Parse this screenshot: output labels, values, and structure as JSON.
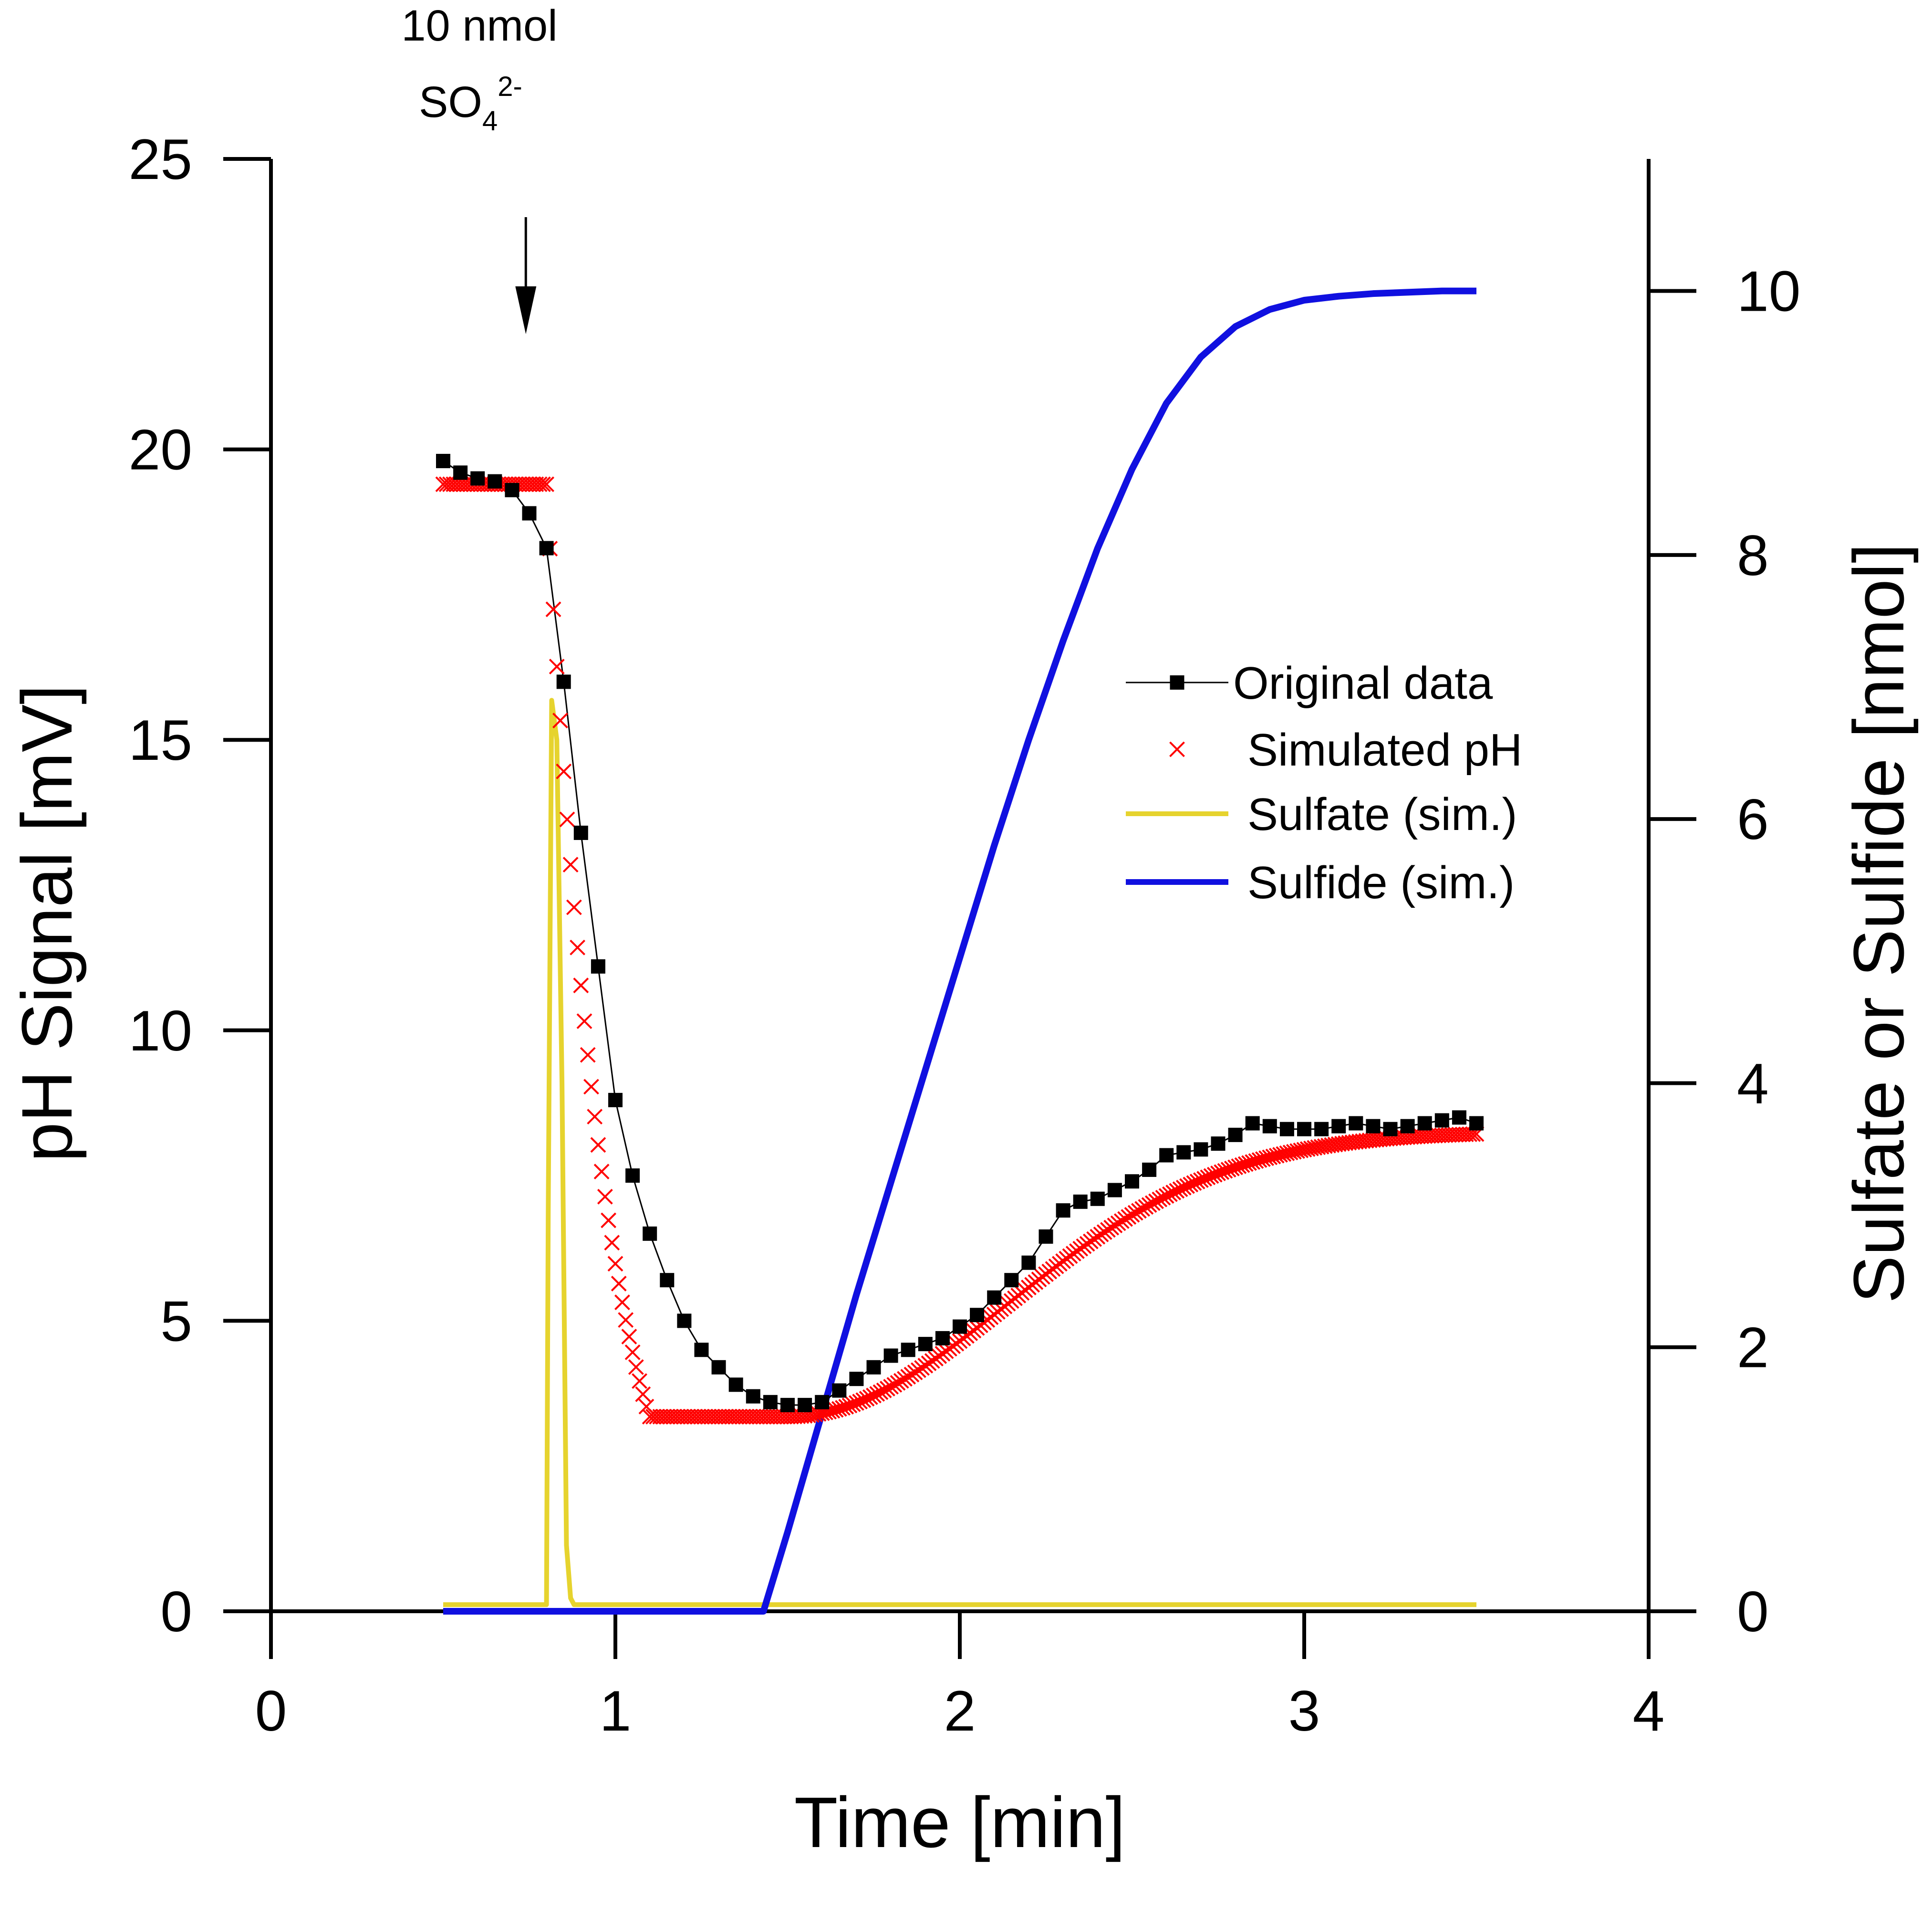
{
  "chart_data": {
    "type": "line",
    "title": "",
    "xlabel": "Time [min]",
    "ylabel": "pH Signal [mV]",
    "ylabel_right": "Sulfate or Sulfide [nmol]",
    "xlim": [
      0,
      4
    ],
    "ylim": [
      0,
      25
    ],
    "ylim_right": [
      0,
      11
    ],
    "x_ticks": [
      "0",
      "1",
      "2",
      "3",
      "4"
    ],
    "y_ticks": [
      "0",
      "5",
      "10",
      "15",
      "20",
      "25"
    ],
    "y_ticks_right": [
      "0",
      "2",
      "4",
      "6",
      "8",
      "10"
    ],
    "grid": false,
    "legend_position": "center-right",
    "annotation": {
      "line1": "10 nmol",
      "line2_main": "SO",
      "line2_sub": "4",
      "line2_sup": "2-",
      "x": 0.74
    },
    "series": [
      {
        "name": "Original data",
        "axis": "left",
        "color": "#000000",
        "marker": "square",
        "x": [
          0.5,
          0.55,
          0.6,
          0.65,
          0.7,
          0.75,
          0.8,
          0.85,
          0.9,
          0.95,
          1.0,
          1.05,
          1.1,
          1.15,
          1.2,
          1.25,
          1.3,
          1.35,
          1.4,
          1.45,
          1.5,
          1.55,
          1.6,
          1.65,
          1.7,
          1.75,
          1.8,
          1.85,
          1.9,
          1.95,
          2.0,
          2.05,
          2.1,
          2.15,
          2.2,
          2.25,
          2.3,
          2.35,
          2.4,
          2.45,
          2.5,
          2.55,
          2.6,
          2.65,
          2.7,
          2.75,
          2.8,
          2.85,
          2.9,
          2.95,
          3.0,
          3.05,
          3.1,
          3.15,
          3.2,
          3.25,
          3.3,
          3.35,
          3.4,
          3.45,
          3.5
        ],
        "y": [
          19.8,
          19.6,
          19.5,
          19.45,
          19.3,
          18.9,
          18.3,
          16.0,
          13.4,
          11.1,
          8.8,
          7.5,
          6.5,
          5.7,
          5.0,
          4.5,
          4.2,
          3.9,
          3.7,
          3.6,
          3.55,
          3.55,
          3.6,
          3.8,
          4.0,
          4.2,
          4.4,
          4.5,
          4.6,
          4.7,
          4.9,
          5.1,
          5.4,
          5.7,
          6.0,
          6.45,
          6.9,
          7.05,
          7.1,
          7.25,
          7.4,
          7.6,
          7.85,
          7.9,
          7.95,
          8.05,
          8.2,
          8.4,
          8.35,
          8.3,
          8.3,
          8.3,
          8.35,
          8.4,
          8.35,
          8.3,
          8.35,
          8.4,
          8.45,
          8.5,
          8.4
        ]
      },
      {
        "name": "Simulated pH",
        "axis": "left",
        "color": "#ff0000",
        "marker": "x",
        "plateau": 19.4,
        "onset": 0.8,
        "end": 3.5,
        "step": 0.01
      },
      {
        "name": "Sulfate (sim.)",
        "axis": "right",
        "color": "#e6d32e",
        "x": [
          0.5,
          0.8,
          0.805,
          0.815,
          0.83,
          0.845,
          0.858,
          0.87,
          0.88,
          3.5
        ],
        "y": [
          0.05,
          0.05,
          3.0,
          6.9,
          6.6,
          4.0,
          0.5,
          0.1,
          0.05,
          0.05
        ]
      },
      {
        "name": "Sulfide (sim.)",
        "axis": "right",
        "color": "#1010e0",
        "x": [
          0.5,
          1.43,
          1.5,
          1.6,
          1.7,
          1.8,
          1.9,
          2.0,
          2.1,
          2.2,
          2.3,
          2.4,
          2.5,
          2.6,
          2.7,
          2.8,
          2.9,
          3.0,
          3.1,
          3.2,
          3.3,
          3.4,
          3.5
        ],
        "y": [
          0.0,
          0.0,
          0.6,
          1.5,
          2.4,
          3.25,
          4.1,
          4.95,
          5.8,
          6.6,
          7.35,
          8.05,
          8.65,
          9.15,
          9.5,
          9.73,
          9.86,
          9.93,
          9.96,
          9.98,
          9.99,
          10.0,
          10.0
        ]
      }
    ]
  }
}
